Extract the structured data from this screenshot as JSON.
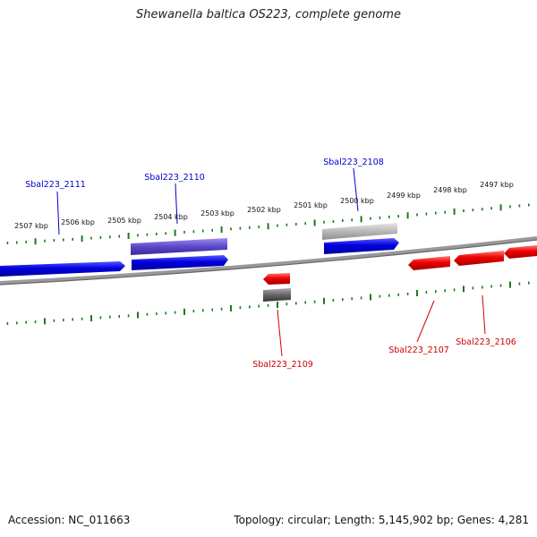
{
  "title": "Shewanella baltica OS223, complete genome",
  "footer": {
    "accession": "Accession: NC_011663",
    "summary": "Topology: circular; Length: 5,145,902 bp; Genes: 4,281"
  },
  "colors": {
    "forward_gene": "#0000dd",
    "reverse_gene": "#ee0000",
    "feature_purple": "#6655cc",
    "feature_gray_light": "#bbbbbb",
    "feature_gray_dark": "#666666",
    "tick": "#1a7a1a",
    "backbone": "#888888"
  },
  "ticks": {
    "labels": [
      "2507 kbp",
      "2506 kbp",
      "2505 kbp",
      "2504 kbp",
      "2503 kbp",
      "2502 kbp",
      "2501 kbp",
      "2500 kbp",
      "2499 kbp",
      "2498 kbp",
      "2497 kbp"
    ]
  },
  "genes": [
    {
      "label": "Sbal223_2111",
      "strand": "forward"
    },
    {
      "label": "Sbal223_2110",
      "strand": "forward"
    },
    {
      "label": "Sbal223_2108",
      "strand": "forward"
    },
    {
      "label": "Sbal223_2109",
      "strand": "reverse"
    },
    {
      "label": "Sbal223_2107",
      "strand": "reverse"
    },
    {
      "label": "Sbal223_2106",
      "strand": "reverse"
    }
  ]
}
